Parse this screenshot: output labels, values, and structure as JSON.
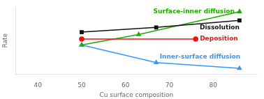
{
  "chart_data": {
    "type": "line",
    "xlabel": "Cu surface composition",
    "ylabel": "Rate",
    "xlim": [
      35,
      90
    ],
    "ylim": [
      0.0,
      1.15
    ],
    "xticks": [
      40,
      50,
      60,
      70,
      80
    ],
    "grid": false,
    "tick_labels": "x",
    "series": [
      {
        "name": "Dissolution",
        "color": "#111111",
        "marker": "square",
        "x": [
          50,
          67,
          86
        ],
        "values": [
          0.72,
          0.8,
          0.92
        ]
      },
      {
        "name": "Deposition",
        "color": "#ee1111",
        "marker": "circle",
        "x": [
          50,
          76
        ],
        "values": [
          0.6,
          0.6
        ]
      },
      {
        "name": "Surface-inner diffusion",
        "color": "#22aa00",
        "marker": "triangle",
        "x": [
          50,
          63,
          86
        ],
        "values": [
          0.5,
          0.68,
          1.07
        ]
      },
      {
        "name": "Inner-surface diffusion",
        "color": "#3399ff",
        "marker": "triangle",
        "x": [
          50,
          67,
          86
        ],
        "values": [
          0.5,
          0.2,
          0.1
        ]
      }
    ]
  }
}
